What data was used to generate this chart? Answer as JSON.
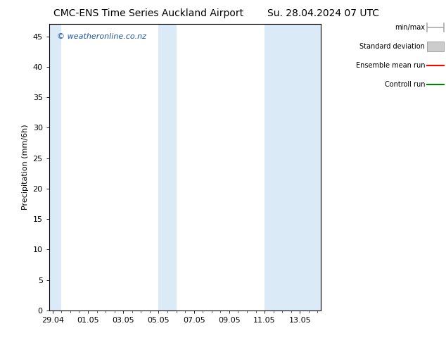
{
  "title_left": "CMC-ENS Time Series Auckland Airport",
  "title_right": "Su. 28.04.2024 07 UTC",
  "ylabel": "Precipitation (mm/6h)",
  "watermark": "© weatheronline.co.nz",
  "ylim": [
    0,
    47
  ],
  "yticks": [
    0,
    5,
    10,
    15,
    20,
    25,
    30,
    35,
    40,
    45
  ],
  "x_tick_labels": [
    "29.04",
    "01.05",
    "03.05",
    "05.05",
    "07.05",
    "09.05",
    "11.05",
    "13.05"
  ],
  "x_tick_positions": [
    0,
    2,
    4,
    6,
    8,
    10,
    12,
    14
  ],
  "xlim": [
    -0.2,
    15.2
  ],
  "shaded_regions": [
    {
      "x_start": -0.2,
      "x_end": 0.5
    },
    {
      "x_start": 6.0,
      "x_end": 7.0
    },
    {
      "x_start": 12.0,
      "x_end": 15.2
    }
  ],
  "shaded_color": "#daeaf7",
  "background_color": "#ffffff",
  "legend_items": [
    {
      "label": "min/max",
      "color": "#aaaaaa",
      "style": "line_with_caps"
    },
    {
      "label": "Standard deviation",
      "color": "#cccccc",
      "style": "filled_box"
    },
    {
      "label": "Ensemble mean run",
      "color": "#ff0000",
      "style": "line"
    },
    {
      "label": "Controll run",
      "color": "#008000",
      "style": "line"
    }
  ],
  "title_fontsize": 10,
  "axis_fontsize": 8,
  "legend_fontsize": 7,
  "watermark_color": "#1a55aa",
  "watermark_fontsize": 8
}
